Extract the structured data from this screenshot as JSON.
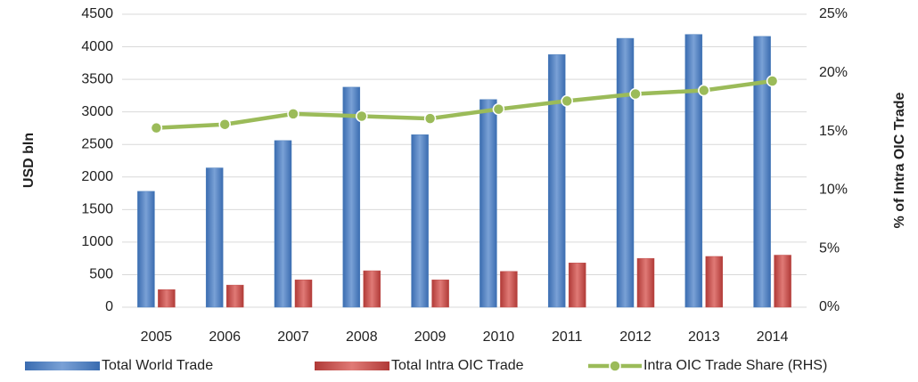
{
  "chart_data": {
    "type": "bar",
    "categories": [
      "2005",
      "2006",
      "2007",
      "2008",
      "2009",
      "2010",
      "2011",
      "2012",
      "2013",
      "2014"
    ],
    "y_label": "USD bln",
    "y2_label": "% of Intra OIC Trade",
    "series": [
      {
        "name": "Total World Trade",
        "type": "bar",
        "color": "#4f81bd",
        "values": [
          1780,
          2140,
          2560,
          3380,
          2650,
          3190,
          3880,
          4130,
          4190,
          4160
        ]
      },
      {
        "name": "Total Intra OIC Trade",
        "type": "bar",
        "color": "#c0504d",
        "values": [
          270,
          340,
          420,
          560,
          420,
          550,
          680,
          750,
          780,
          800
        ]
      },
      {
        "name": "Intra OIC Trade Share (RHS)",
        "type": "line",
        "axis": "y2",
        "color": "#9bbb59",
        "values": [
          15.3,
          15.6,
          16.5,
          16.3,
          16.1,
          16.9,
          17.6,
          18.2,
          18.5,
          19.3
        ]
      }
    ],
    "ylim": [
      0,
      4500
    ],
    "yticks": [
      0,
      500,
      1000,
      1500,
      2000,
      2500,
      3000,
      3500,
      4000,
      4500
    ],
    "y2lim": [
      0,
      25
    ],
    "y2ticks": [
      {
        "value": 0,
        "label": "0%"
      },
      {
        "value": 5,
        "label": "5%"
      },
      {
        "value": 10,
        "label": "10%"
      },
      {
        "value": 15,
        "label": "15%"
      },
      {
        "value": 20,
        "label": "20%"
      },
      {
        "value": 25,
        "label": "25%"
      }
    ],
    "grid": true,
    "legend": "bottom"
  }
}
